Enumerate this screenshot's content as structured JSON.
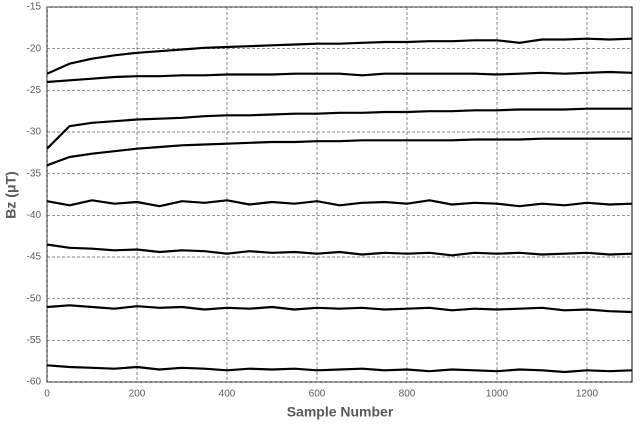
{
  "chart_data": {
    "type": "line",
    "ylabel": "Bz (μT)",
    "xlabel": "Sample Number",
    "xlim": [
      0,
      1300
    ],
    "xticks": [
      0,
      200,
      400,
      600,
      800,
      1000,
      1200
    ],
    "ylim": [
      -60,
      -15
    ],
    "yticks": [
      -60,
      -55,
      -50,
      -45,
      -40,
      -35,
      -30,
      -25,
      -20,
      -15
    ],
    "grid": true,
    "x": [
      0,
      50,
      100,
      150,
      200,
      250,
      300,
      350,
      400,
      450,
      500,
      550,
      600,
      650,
      700,
      750,
      800,
      850,
      900,
      950,
      1000,
      1050,
      1100,
      1150,
      1200,
      1250,
      1300
    ],
    "series": [
      {
        "color": "#000000",
        "values": [
          -23,
          -21.8,
          -21.2,
          -20.8,
          -20.5,
          -20.3,
          -20.1,
          -19.9,
          -19.8,
          -19.7,
          -19.6,
          -19.5,
          -19.4,
          -19.4,
          -19.3,
          -19.2,
          -19.2,
          -19.1,
          -19.1,
          -19,
          -19,
          -19.3,
          -18.9,
          -18.9,
          -18.8,
          -18.9,
          -18.8
        ]
      },
      {
        "color": "#000000",
        "values": [
          -24,
          -23.8,
          -23.6,
          -23.4,
          -23.3,
          -23.3,
          -23.2,
          -23.2,
          -23.1,
          -23.1,
          -23.1,
          -23,
          -23,
          -23,
          -23.2,
          -23,
          -23,
          -23,
          -23,
          -23,
          -23.1,
          -23,
          -22.9,
          -23,
          -22.9,
          -22.8,
          -22.9
        ]
      },
      {
        "color": "#000000",
        "values": [
          -32,
          -29.3,
          -28.9,
          -28.7,
          -28.5,
          -28.4,
          -28.3,
          -28.1,
          -28,
          -28,
          -27.9,
          -27.8,
          -27.8,
          -27.7,
          -27.7,
          -27.6,
          -27.6,
          -27.5,
          -27.5,
          -27.4,
          -27.4,
          -27.3,
          -27.3,
          -27.3,
          -27.2,
          -27.2,
          -27.2
        ]
      },
      {
        "color": "#000000",
        "values": [
          -34,
          -33,
          -32.6,
          -32.3,
          -32,
          -31.8,
          -31.6,
          -31.5,
          -31.4,
          -31.3,
          -31.2,
          -31.2,
          -31.1,
          -31.1,
          -31,
          -31,
          -31,
          -31,
          -31,
          -30.9,
          -30.9,
          -30.9,
          -30.8,
          -30.8,
          -30.8,
          -30.8,
          -30.8
        ]
      },
      {
        "color": "#000000",
        "values": [
          -38.3,
          -38.8,
          -38.2,
          -38.6,
          -38.4,
          -38.9,
          -38.3,
          -38.5,
          -38.2,
          -38.7,
          -38.4,
          -38.6,
          -38.3,
          -38.8,
          -38.5,
          -38.4,
          -38.6,
          -38.2,
          -38.7,
          -38.5,
          -38.6,
          -38.9,
          -38.6,
          -38.8,
          -38.5,
          -38.7,
          -38.6
        ]
      },
      {
        "color": "#000000",
        "values": [
          -43.5,
          -43.9,
          -44,
          -44.2,
          -44.1,
          -44.4,
          -44.2,
          -44.3,
          -44.6,
          -44.3,
          -44.5,
          -44.4,
          -44.6,
          -44.4,
          -44.7,
          -44.5,
          -44.6,
          -44.5,
          -44.8,
          -44.5,
          -44.6,
          -44.5,
          -44.7,
          -44.6,
          -44.5,
          -44.7,
          -44.6
        ]
      },
      {
        "color": "#000000",
        "values": [
          -51,
          -50.8,
          -51,
          -51.2,
          -50.9,
          -51.1,
          -51,
          -51.3,
          -51.1,
          -51.2,
          -51,
          -51.3,
          -51.1,
          -51.2,
          -51.1,
          -51.3,
          -51.2,
          -51.1,
          -51.4,
          -51.2,
          -51.3,
          -51.2,
          -51.1,
          -51.4,
          -51.3,
          -51.5,
          -51.6
        ]
      },
      {
        "color": "#000000",
        "values": [
          -58,
          -58.2,
          -58.3,
          -58.4,
          -58.2,
          -58.5,
          -58.3,
          -58.4,
          -58.6,
          -58.4,
          -58.5,
          -58.4,
          -58.6,
          -58.5,
          -58.4,
          -58.6,
          -58.5,
          -58.7,
          -58.5,
          -58.6,
          -58.7,
          -58.5,
          -58.6,
          -58.8,
          -58.6,
          -58.7,
          -58.6
        ]
      }
    ]
  }
}
